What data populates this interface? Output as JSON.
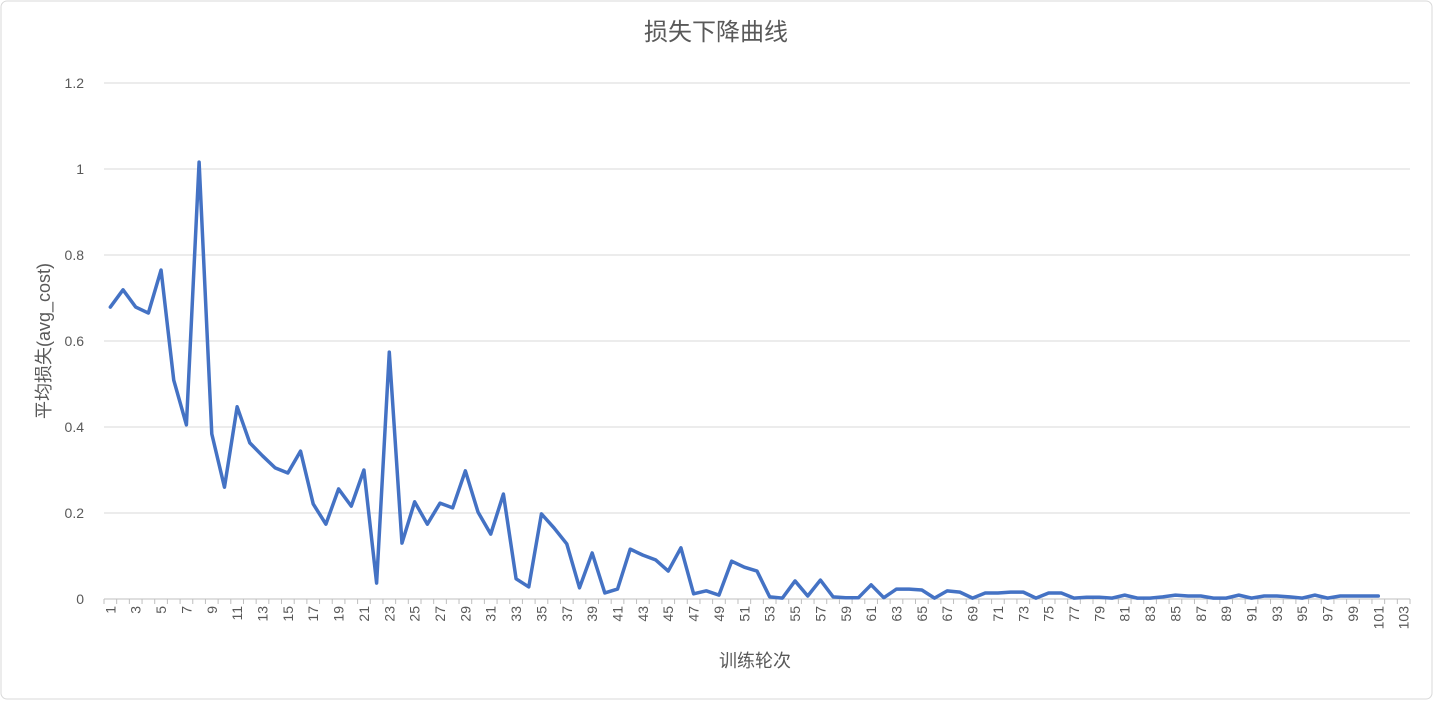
{
  "chart_data": {
    "type": "line",
    "title": "损失下降曲线",
    "x_label": "训练轮次",
    "y_label": "平均损失(avg_cost)",
    "categories": [
      1,
      null,
      3,
      null,
      5,
      null,
      7,
      null,
      9,
      null,
      11,
      null,
      13,
      null,
      15,
      null,
      17,
      null,
      19,
      null,
      21,
      null,
      23,
      null,
      25,
      null,
      27,
      null,
      29,
      null,
      31,
      null,
      33,
      null,
      35,
      null,
      37,
      null,
      39,
      null,
      41,
      null,
      43,
      null,
      45,
      null,
      47,
      null,
      49,
      null,
      51,
      null,
      53,
      null,
      55,
      null,
      57,
      null,
      59,
      null,
      61,
      null,
      63,
      null,
      65,
      null,
      67,
      null,
      69,
      null,
      71,
      null,
      73,
      null,
      75,
      null,
      77,
      null,
      79,
      null,
      81,
      null,
      83,
      null,
      85,
      null,
      87,
      null,
      89,
      null,
      91,
      null,
      93,
      null,
      95,
      null,
      97,
      null,
      99,
      null,
      101,
      null,
      103
    ],
    "values": [
      0.679,
      0.719,
      0.679,
      0.665,
      0.765,
      0.509,
      0.405,
      1.016,
      0.384,
      0.26,
      0.447,
      0.363,
      0.333,
      0.305,
      0.293,
      0.344,
      0.221,
      0.174,
      0.256,
      0.216,
      0.3,
      0.037,
      0.574,
      0.13,
      0.226,
      0.174,
      0.223,
      0.212,
      0.298,
      0.202,
      0.151,
      0.244,
      0.047,
      0.028,
      0.198,
      0.165,
      0.128,
      0.026,
      0.107,
      0.014,
      0.023,
      0.116,
      0.102,
      0.091,
      0.065,
      0.119,
      0.012,
      0.019,
      0.009,
      0.088,
      0.074,
      0.065,
      0.005,
      0.002,
      0.042,
      0.007,
      0.044,
      0.005,
      0.003,
      0.003,
      0.033,
      0.003,
      0.023,
      0.023,
      0.021,
      0.002,
      0.019,
      0.016,
      0.002,
      0.014,
      0.014,
      0.016,
      0.016,
      0.002,
      0.014,
      0.014,
      0.002,
      0.004,
      0.004,
      0.002,
      0.009,
      0.002,
      0.002,
      0.005,
      0.009,
      0.007,
      0.007,
      0.002,
      0.002,
      0.009,
      0.002,
      0.007,
      0.007,
      0.005,
      0.002,
      0.009,
      0.002,
      0.007,
      0.007,
      0.007,
      0.007,
      null,
      null
    ],
    "color": "#4472c4",
    "ylim": [
      0,
      1.2
    ],
    "yticks": [
      0,
      0.2,
      0.4,
      0.6,
      0.8,
      1,
      1.2
    ],
    "grid": true
  }
}
